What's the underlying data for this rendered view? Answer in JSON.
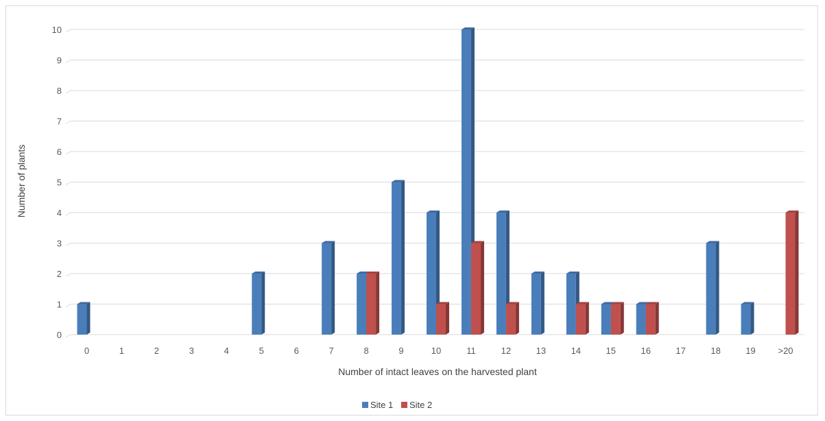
{
  "chart_data": {
    "type": "bar",
    "title": "",
    "xlabel": "Number of intact leaves on the harvested plant",
    "ylabel": "Number of plants",
    "categories": [
      "0",
      "1",
      "2",
      "3",
      "4",
      "5",
      "6",
      "7",
      "8",
      "9",
      "10",
      "11",
      "12",
      "13",
      "14",
      "15",
      "16",
      "17",
      "18",
      "19",
      ">20"
    ],
    "series": [
      {
        "name": "Site 1",
        "color": "#4a7ebb",
        "values": [
          1,
          0,
          0,
          0,
          0,
          2,
          0,
          3,
          2,
          5,
          4,
          10,
          4,
          2,
          2,
          1,
          1,
          0,
          3,
          1,
          0
        ]
      },
      {
        "name": "Site 2",
        "color": "#c0504d",
        "values": [
          0,
          0,
          0,
          0,
          0,
          0,
          0,
          0,
          2,
          0,
          1,
          3,
          1,
          0,
          1,
          1,
          1,
          0,
          0,
          0,
          4
        ]
      }
    ],
    "ylim": [
      0,
      10
    ],
    "yticks": [
      0,
      1,
      2,
      3,
      4,
      5,
      6,
      7,
      8,
      9,
      10
    ],
    "grid": true,
    "legend_position": "bottom"
  }
}
